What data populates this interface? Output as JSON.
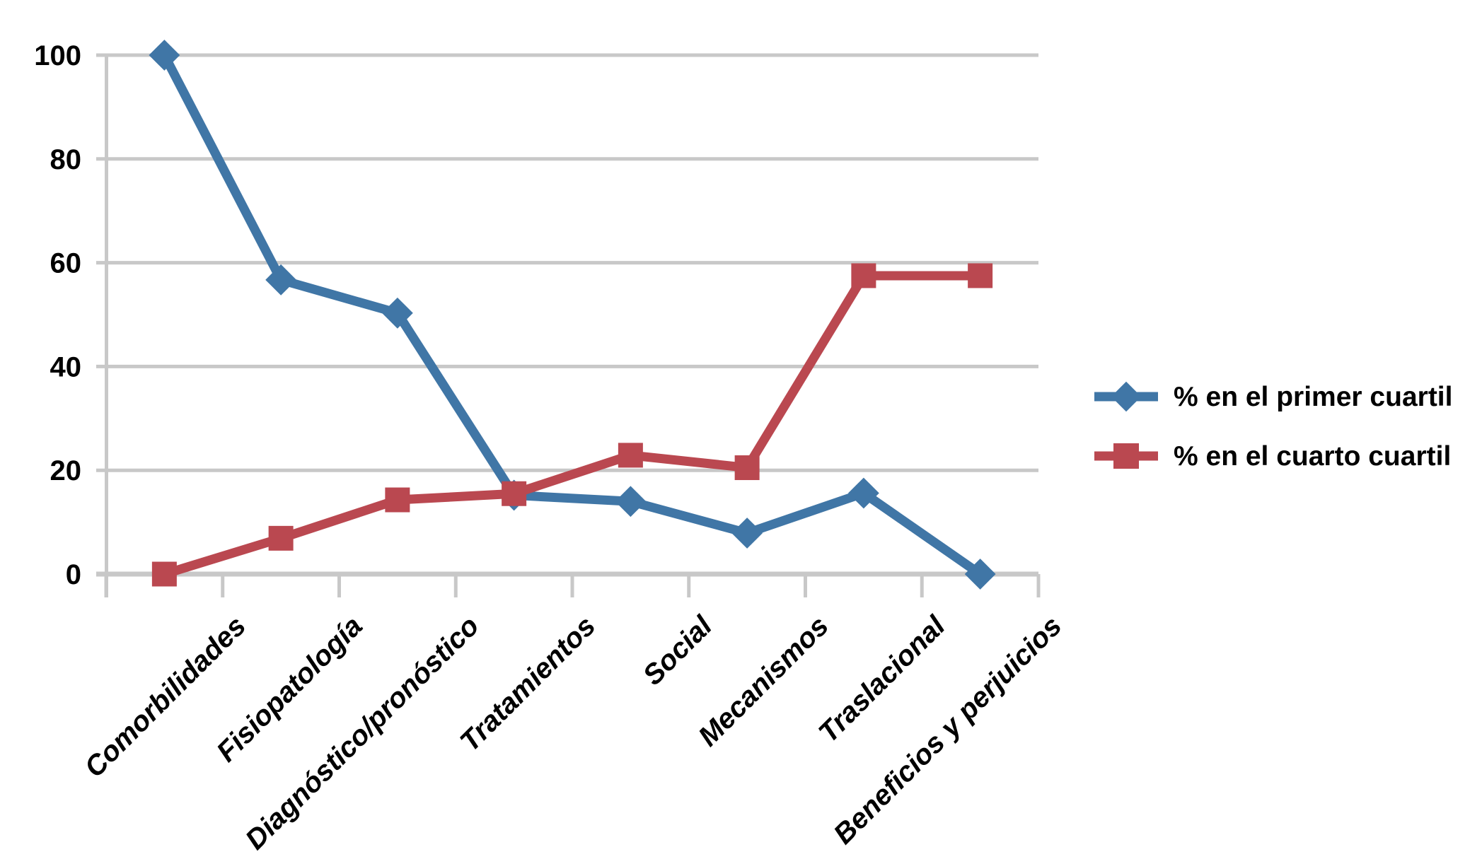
{
  "page": {
    "background_color": "#FFFFFF"
  },
  "chart_data": {
    "type": "line",
    "title": "",
    "xlabel": "",
    "ylabel": "",
    "categories": [
      "Comorbilidades",
      "Fisiopatología",
      "Diagnóstico/pronóstico",
      "Tratamientos",
      "Social",
      "Mecanismos",
      "Traslacional",
      "Beneficios y perjuicios"
    ],
    "series": [
      {
        "name": "% en el primer cuartil",
        "marker": "diamond",
        "color": "#4076A6",
        "values": [
          100,
          56.7,
          50.3,
          15.2,
          14,
          7.9,
          15.6,
          0
        ]
      },
      {
        "name": "% en el cuarto cuartil",
        "marker": "square",
        "color": "#BA4850",
        "values": [
          0,
          6.9,
          14.3,
          15.5,
          22.9,
          20.5,
          57.5,
          57.5
        ]
      }
    ],
    "ylim": [
      0,
      100
    ],
    "yticks": [
      0,
      20,
      40,
      60,
      80,
      100
    ],
    "grid": "horizontal",
    "gridline_color": "#C8C8C8",
    "axis_color": "#C8C8C8",
    "text_color": "#000000",
    "legend_position": "right-middle",
    "x_label_rotation_deg": -45
  }
}
